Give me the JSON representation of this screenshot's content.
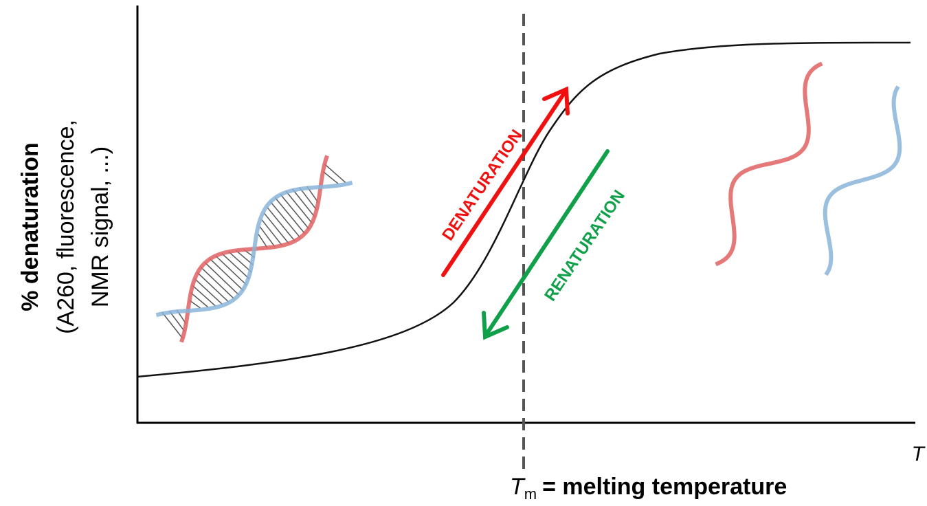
{
  "y_axis": {
    "title": "% denaturation",
    "subtitle_lines": [
      "(A260, fluorescence,",
      "NMR signal, ...)"
    ]
  },
  "x_axis": {
    "label": "T"
  },
  "melting_label": {
    "symbol": "T",
    "subscript": "m",
    "text": "= melting temperature"
  },
  "arrows": {
    "forward": "DENATURATION",
    "reverse": "RENATURATION"
  }
}
